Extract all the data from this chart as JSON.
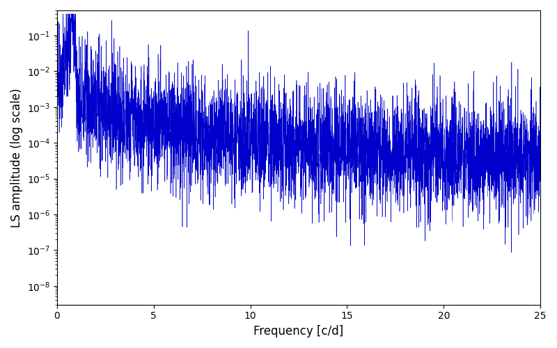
{
  "xlabel": "Frequency [c/d]",
  "ylabel": "LS amplitude (log scale)",
  "line_color": "#0000cc",
  "xlim": [
    0,
    25
  ],
  "ylim": [
    3e-09,
    0.5
  ],
  "freq_max": 25,
  "n_points": 5000,
  "seed": 77,
  "background_color": "#ffffff",
  "figsize": [
    8.0,
    5.0
  ],
  "dpi": 100,
  "xlabel_fontsize": 12,
  "ylabel_fontsize": 12,
  "tick_labelsize": 10,
  "linewidth": 0.4
}
